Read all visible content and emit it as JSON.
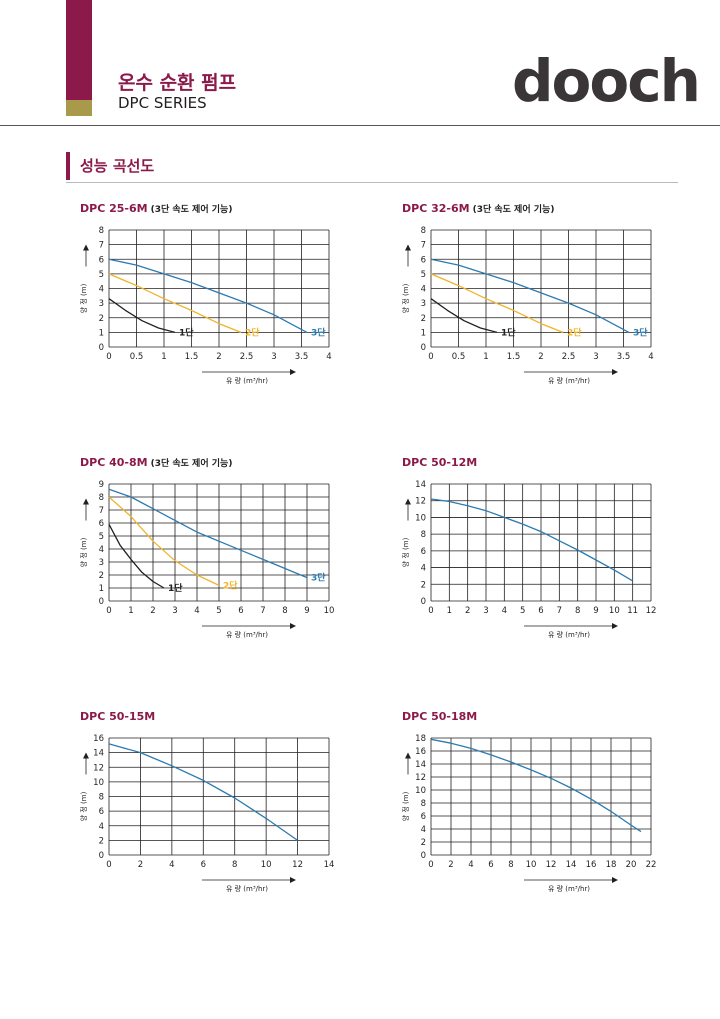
{
  "colors": {
    "brand": "#8b1a4a",
    "gold": "#a89a4a",
    "stage1": "#231f20",
    "stage2": "#f0b429",
    "stage3": "#2b7bb0",
    "grid": "#231f20"
  },
  "header": {
    "title": "온수 순환 펌프",
    "subtitle": "DPC SERIES",
    "logo": "dooch"
  },
  "section": {
    "title": "성능 곡선도"
  },
  "axis_text": {
    "xlabel": "유 량 (m³/hr)",
    "ylabel": "양 정 (m)"
  },
  "charts": [
    {
      "model": "DPC 25-6M",
      "note": "(3단 속도 제어 기능)",
      "xlim": [
        0,
        4
      ],
      "xticks": [
        "0",
        "0.5",
        "1",
        "1.5",
        "2",
        "2.5",
        "3",
        "3.5",
        "4"
      ],
      "ylim": [
        0,
        8
      ],
      "yticks": [
        "0",
        "1",
        "2",
        "3",
        "4",
        "5",
        "6",
        "7",
        "8"
      ]
    },
    {
      "model": "DPC 32-6M",
      "note": "(3단 속도 제어 기능)",
      "xlim": [
        0,
        4
      ],
      "xticks": [
        "0",
        "0.5",
        "1",
        "1.5",
        "2",
        "2.5",
        "3",
        "3.5",
        "4"
      ],
      "ylim": [
        0,
        8
      ],
      "yticks": [
        "0",
        "1",
        "2",
        "3",
        "4",
        "5",
        "6",
        "7",
        "8"
      ]
    },
    {
      "model": "DPC 40-8M",
      "note": "(3단 속도 제어 기능)",
      "xlim": [
        0,
        10
      ],
      "xticks": [
        "0",
        "1",
        "2",
        "3",
        "4",
        "5",
        "6",
        "7",
        "8",
        "9",
        "10"
      ],
      "ylim": [
        0,
        9
      ],
      "yticks": [
        "0",
        "1",
        "2",
        "3",
        "4",
        "5",
        "6",
        "7",
        "8",
        "9"
      ]
    },
    {
      "model": "DPC 50-12M",
      "note": "",
      "xlim": [
        0,
        12
      ],
      "xticks": [
        "0",
        "1",
        "2",
        "3",
        "4",
        "5",
        "6",
        "7",
        "8",
        "9",
        "10",
        "11",
        "12"
      ],
      "ylim": [
        0,
        14
      ],
      "yticks": [
        "0",
        "2",
        "4",
        "6",
        "8",
        "10",
        "12",
        "14"
      ]
    },
    {
      "model": "DPC 50-15M",
      "note": "",
      "xlim": [
        0,
        14
      ],
      "xticks": [
        "0",
        "2",
        "4",
        "6",
        "8",
        "10",
        "12",
        "14"
      ],
      "ylim": [
        0,
        16
      ],
      "yticks": [
        "0",
        "2",
        "4",
        "6",
        "8",
        "10",
        "12",
        "14",
        "16"
      ]
    },
    {
      "model": "DPC 50-18M",
      "note": "",
      "xlim": [
        0,
        22
      ],
      "xticks": [
        "0",
        "2",
        "4",
        "6",
        "8",
        "10",
        "12",
        "14",
        "16",
        "18",
        "20",
        "22"
      ],
      "ylim": [
        0,
        18
      ],
      "yticks": [
        "0",
        "2",
        "4",
        "6",
        "8",
        "10",
        "12",
        "14",
        "16",
        "18"
      ]
    }
  ],
  "chart_data": [
    {
      "type": "line",
      "title": "DPC 25-6M",
      "xlabel": "유 량 (m³/hr)",
      "ylabel": "양 정 (m)",
      "xlim": [
        0,
        4
      ],
      "ylim": [
        0,
        8
      ],
      "grid": true,
      "series": [
        {
          "name": "1단",
          "color": "#231f20",
          "x": [
            0,
            0.3,
            0.6,
            0.9,
            1.2
          ],
          "y": [
            3.3,
            2.5,
            1.8,
            1.3,
            1.0
          ]
        },
        {
          "name": "2단",
          "color": "#f0b429",
          "x": [
            0,
            0.5,
            1.0,
            1.5,
            2.0,
            2.4
          ],
          "y": [
            5.0,
            4.2,
            3.3,
            2.5,
            1.6,
            1.0
          ]
        },
        {
          "name": "3단",
          "color": "#2b7bb0",
          "x": [
            0,
            0.5,
            1.0,
            1.5,
            2.0,
            2.5,
            3.0,
            3.6
          ],
          "y": [
            6.0,
            5.6,
            5.0,
            4.4,
            3.7,
            3.0,
            2.2,
            1.0
          ]
        }
      ]
    },
    {
      "type": "line",
      "title": "DPC 32-6M",
      "xlabel": "유 량 (m³/hr)",
      "ylabel": "양 정 (m)",
      "xlim": [
        0,
        4
      ],
      "ylim": [
        0,
        8
      ],
      "grid": true,
      "series": [
        {
          "name": "1단",
          "color": "#231f20",
          "x": [
            0,
            0.3,
            0.6,
            0.9,
            1.2
          ],
          "y": [
            3.3,
            2.5,
            1.8,
            1.3,
            1.0
          ]
        },
        {
          "name": "2단",
          "color": "#f0b429",
          "x": [
            0,
            0.5,
            1.0,
            1.5,
            2.0,
            2.4
          ],
          "y": [
            5.0,
            4.2,
            3.3,
            2.5,
            1.6,
            1.0
          ]
        },
        {
          "name": "3단",
          "color": "#2b7bb0",
          "x": [
            0,
            0.5,
            1.0,
            1.5,
            2.0,
            2.5,
            3.0,
            3.6
          ],
          "y": [
            6.0,
            5.6,
            5.0,
            4.4,
            3.7,
            3.0,
            2.2,
            1.0
          ]
        }
      ]
    },
    {
      "type": "line",
      "title": "DPC 40-8M",
      "xlabel": "유 량 (m³/hr)",
      "ylabel": "양 정 (m)",
      "xlim": [
        0,
        10
      ],
      "ylim": [
        0,
        9
      ],
      "grid": true,
      "series": [
        {
          "name": "1단",
          "color": "#231f20",
          "x": [
            0,
            0.5,
            1.0,
            1.5,
            2.0,
            2.5
          ],
          "y": [
            5.9,
            4.3,
            3.2,
            2.2,
            1.5,
            1.0
          ]
        },
        {
          "name": "2단",
          "color": "#f0b429",
          "x": [
            0,
            1,
            2,
            3,
            4,
            5
          ],
          "y": [
            8.0,
            6.5,
            4.6,
            3.1,
            2.0,
            1.2
          ]
        },
        {
          "name": "3단",
          "color": "#2b7bb0",
          "x": [
            0,
            1,
            2,
            3,
            4,
            5,
            6,
            7,
            8,
            9
          ],
          "y": [
            8.6,
            8.0,
            7.1,
            6.2,
            5.3,
            4.6,
            3.9,
            3.2,
            2.5,
            1.8
          ]
        }
      ]
    },
    {
      "type": "line",
      "title": "DPC 50-12M",
      "xlabel": "유 량 (m³/hr)",
      "ylabel": "양 정 (m)",
      "xlim": [
        0,
        12
      ],
      "ylim": [
        0,
        14
      ],
      "grid": true,
      "series": [
        {
          "color": "#2b7bb0",
          "x": [
            0,
            1,
            2,
            3,
            4,
            5,
            6,
            7,
            8,
            9,
            10,
            11
          ],
          "y": [
            12.2,
            11.9,
            11.4,
            10.8,
            10.0,
            9.2,
            8.3,
            7.2,
            6.1,
            4.9,
            3.7,
            2.4
          ]
        }
      ]
    },
    {
      "type": "line",
      "title": "DPC 50-15M",
      "xlabel": "유 량 (m³/hr)",
      "ylabel": "양 정 (m)",
      "xlim": [
        0,
        14
      ],
      "ylim": [
        0,
        16
      ],
      "grid": true,
      "series": [
        {
          "color": "#2b7bb0",
          "x": [
            0,
            2,
            4,
            6,
            8,
            10,
            12
          ],
          "y": [
            15.2,
            14.0,
            12.2,
            10.2,
            7.8,
            5.0,
            2.0
          ]
        }
      ]
    },
    {
      "type": "line",
      "title": "DPC 50-18M",
      "xlabel": "유 량 (m³/hr)",
      "ylabel": "양 정 (m)",
      "xlim": [
        0,
        22
      ],
      "ylim": [
        0,
        18
      ],
      "grid": true,
      "series": [
        {
          "color": "#2b7bb0",
          "x": [
            0,
            2,
            4,
            6,
            8,
            10,
            12,
            14,
            16,
            18,
            20,
            21
          ],
          "y": [
            17.8,
            17.2,
            16.4,
            15.4,
            14.3,
            13.1,
            11.8,
            10.3,
            8.6,
            6.7,
            4.6,
            3.6
          ]
        }
      ]
    }
  ]
}
